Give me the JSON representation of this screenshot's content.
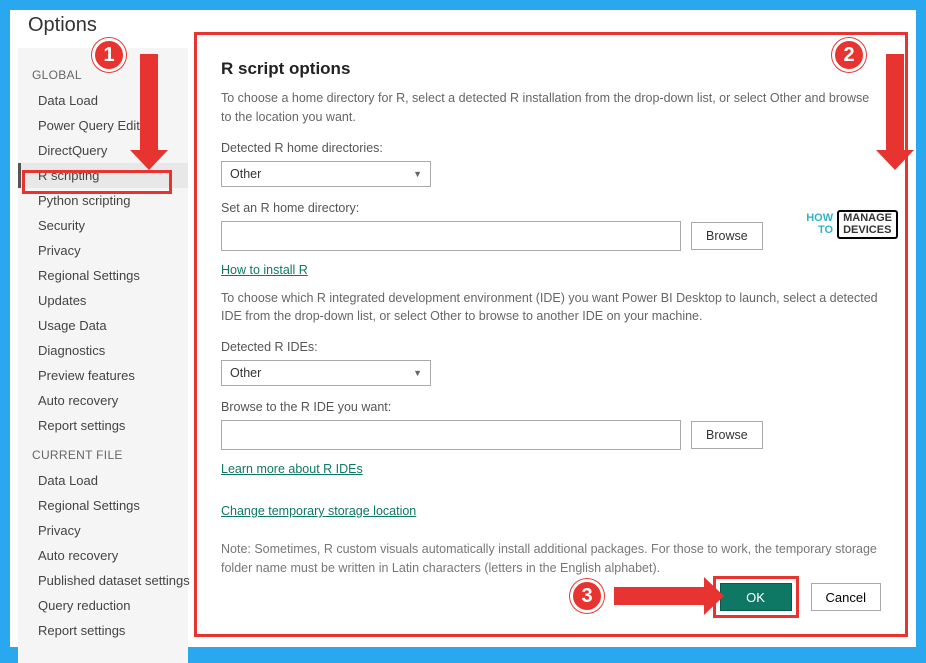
{
  "colors": {
    "frame_border": "#29a8f0",
    "callout_red": "#e73430",
    "ok_green": "#0f7864",
    "link_teal": "#0f7864",
    "sidebar_bg": "#f5f5f5",
    "text_muted": "#666"
  },
  "dialog": {
    "title": "Options"
  },
  "sidebar": {
    "sections": [
      {
        "header": "GLOBAL",
        "items": [
          "Data Load",
          "Power Query Editor",
          "DirectQuery",
          "R scripting",
          "Python scripting",
          "Security",
          "Privacy",
          "Regional Settings",
          "Updates",
          "Usage Data",
          "Diagnostics",
          "Preview features",
          "Auto recovery",
          "Report settings"
        ],
        "selected_index": 3
      },
      {
        "header": "CURRENT FILE",
        "items": [
          "Data Load",
          "Regional Settings",
          "Privacy",
          "Auto recovery",
          "Published dataset settings",
          "Query reduction",
          "Report settings"
        ],
        "selected_index": -1
      }
    ]
  },
  "main": {
    "title": "R script options",
    "desc1": "To choose a home directory for R, select a detected R installation from the drop-down list, or select Other and browse to the location you want.",
    "label_homedirs": "Detected R home directories:",
    "select_homedir_value": "Other",
    "label_set_home": "Set an R home directory:",
    "home_value": "",
    "browse_label": "Browse",
    "link_install": "How to install R",
    "desc2": "To choose which R integrated development environment (IDE) you want Power BI Desktop to launch, select a detected IDE from the drop-down list, or select Other to browse to another IDE on your machine.",
    "label_ides": "Detected R IDEs:",
    "select_ide_value": "Other",
    "label_browse_ide": "Browse to the R IDE you want:",
    "ide_value": "",
    "link_ides": "Learn more about R IDEs",
    "link_storage": "Change temporary storage location",
    "note": "Note: Sometimes, R custom visuals automatically install additional packages. For those to work, the temporary storage folder name must be written in Latin characters (letters in the English alphabet).",
    "ok_label": "OK",
    "cancel_label": "Cancel"
  },
  "callouts": {
    "c1": "1",
    "c2": "2",
    "c3": "3"
  },
  "watermark": {
    "left_top": "HOW",
    "left_bottom": "TO",
    "right_top": "MANAGE",
    "right_bottom": "DEVICES"
  }
}
